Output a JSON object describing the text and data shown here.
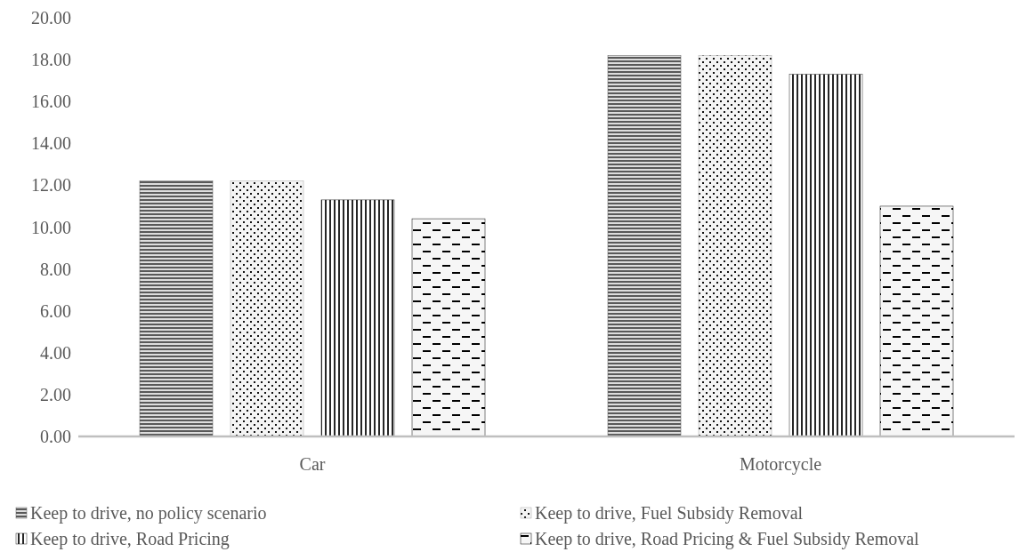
{
  "chart_data": {
    "type": "bar",
    "categories": [
      "Car",
      "Motorcycle"
    ],
    "series": [
      {
        "name": "Keep to drive, no policy scenario",
        "color": "#595959",
        "values": [
          12.2,
          18.2
        ]
      },
      {
        "name": "Keep to drive, Fuel Subsidy Removal",
        "color": "#a6a6a6",
        "values": [
          12.2,
          18.2
        ]
      },
      {
        "name": "Keep to drive, Road Pricing",
        "color": "#262626",
        "values": [
          11.3,
          17.3
        ]
      },
      {
        "name": "Keep to drive, Road Pricing & Fuel Subsidy Removal",
        "color": "#000000",
        "values": [
          10.4,
          11.0
        ]
      }
    ],
    "ylim": [
      0,
      20
    ],
    "yticks": [
      {
        "value": 0,
        "label": "0.00"
      },
      {
        "value": 2,
        "label": "2.00"
      },
      {
        "value": 4,
        "label": "4.00"
      },
      {
        "value": 6,
        "label": "6.00"
      },
      {
        "value": 8,
        "label": "8.00"
      },
      {
        "value": 10,
        "label": "10.00"
      },
      {
        "value": 12,
        "label": "12.00"
      },
      {
        "value": 14,
        "label": "14.00"
      },
      {
        "value": 16,
        "label": "16.00"
      },
      {
        "value": 18,
        "label": "18.00"
      },
      {
        "value": 20,
        "label": "20.00"
      }
    ],
    "grid": false,
    "legend": "bottom"
  }
}
